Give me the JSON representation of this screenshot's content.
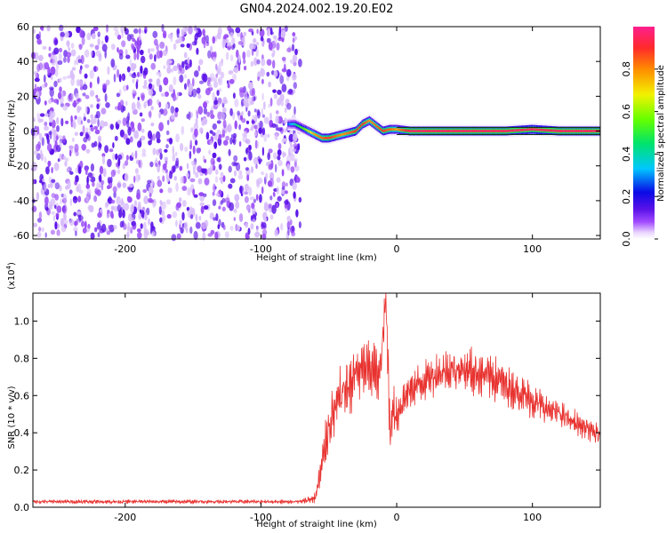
{
  "figure_title": "GN04.2024.002.19.20.E02",
  "colors": {
    "signal_line": "#e8322f",
    "spectrogram_noise": "#7b2cf2",
    "colormap": [
      "#ffffff",
      "#ead6ff",
      "#a24cff",
      "#5a12e8",
      "#0a0ae6",
      "#00c6ff",
      "#00e36b",
      "#62ff00",
      "#f2f200",
      "#ff8c00",
      "#ff2a2a",
      "#ff1f8e"
    ]
  },
  "chart_data": [
    {
      "type": "heatmap",
      "xlabel": "Height of straight line (km)",
      "ylabel": "Frequency (Hz)",
      "xlim": [
        -268,
        150
      ],
      "ylim": [
        -62,
        60
      ],
      "xticks": [
        -200,
        -100,
        0,
        100
      ],
      "xtick_labels": [
        "-200",
        "-100",
        "0",
        "100"
      ],
      "yticks": [
        60,
        40,
        20,
        0,
        -20,
        -40,
        -60
      ],
      "ytick_labels": [
        "60",
        "40",
        "20",
        "0",
        "-20",
        "-40",
        "-60"
      ],
      "noise_region_x": [
        -268,
        -75
      ],
      "signal_band": {
        "x": [
          -80,
          -75,
          -70,
          -65,
          -60,
          -55,
          -50,
          -45,
          -40,
          -35,
          -30,
          -25,
          -20,
          -15,
          -10,
          -5,
          0,
          10,
          20,
          40,
          60,
          80,
          100,
          120,
          150
        ],
        "frequency": [
          4,
          4,
          2,
          0,
          -2,
          -4,
          -4,
          -3,
          -2,
          -1,
          0,
          4,
          6,
          3,
          0,
          1,
          1,
          0,
          0,
          0,
          0,
          0,
          1,
          0,
          0
        ],
        "amplitude": [
          0.4,
          0.5,
          0.6,
          0.7,
          0.8,
          0.85,
          0.9,
          0.85,
          0.8,
          0.85,
          0.9,
          0.9,
          0.8,
          0.85,
          0.9,
          0.85,
          0.8,
          0.95,
          0.95,
          0.95,
          0.95,
          0.95,
          0.95,
          0.95,
          0.95
        ]
      },
      "colorbar": {
        "label": "Normalized spectral amplitude",
        "range": [
          0,
          1
        ],
        "ticks": [
          0.0,
          0.2,
          0.4,
          0.6,
          0.8
        ],
        "tick_labels": [
          "0.0",
          "0.2",
          "0.4",
          "0.6",
          "0.8"
        ]
      }
    },
    {
      "type": "line",
      "xlabel": "Height of straight line (km)",
      "ylabel": "SNR (10 * v/v)",
      "multiplier_label": "(x10",
      "multiplier_exponent": "4",
      "multiplier_close": ")",
      "xlim": [
        -268,
        150
      ],
      "ylim": [
        0,
        1.15
      ],
      "xticks": [
        -200,
        -100,
        0,
        100
      ],
      "xtick_labels": [
        "-200",
        "-100",
        "0",
        "100"
      ],
      "yticks": [
        0.0,
        0.2,
        0.4,
        0.6,
        0.8,
        1.0
      ],
      "ytick_labels": [
        "0.0",
        "0.2",
        "0.4",
        "0.6",
        "0.8",
        "1.0"
      ],
      "series": [
        {
          "x": [
            -268,
            -240,
            -200,
            -150,
            -100,
            -70,
            -60,
            -55,
            -50,
            -45,
            -40,
            -35,
            -30,
            -25,
            -20,
            -15,
            -12,
            -8,
            -5,
            -2,
            0,
            5,
            10,
            20,
            30,
            40,
            50,
            60,
            70,
            80,
            90,
            100,
            110,
            120,
            130,
            140,
            150
          ],
          "y": [
            0.03,
            0.03,
            0.03,
            0.03,
            0.03,
            0.03,
            0.05,
            0.22,
            0.45,
            0.52,
            0.62,
            0.66,
            0.72,
            0.74,
            0.74,
            0.72,
            0.72,
            1.12,
            0.45,
            0.52,
            0.5,
            0.58,
            0.63,
            0.68,
            0.72,
            0.74,
            0.74,
            0.72,
            0.7,
            0.66,
            0.62,
            0.57,
            0.53,
            0.5,
            0.46,
            0.42,
            0.38
          ],
          "spread": [
            0.01,
            0.01,
            0.01,
            0.01,
            0.01,
            0.01,
            0.03,
            0.1,
            0.14,
            0.14,
            0.16,
            0.16,
            0.16,
            0.16,
            0.16,
            0.14,
            0.14,
            0.1,
            0.2,
            0.16,
            0.12,
            0.1,
            0.1,
            0.1,
            0.11,
            0.12,
            0.13,
            0.12,
            0.12,
            0.11,
            0.1,
            0.09,
            0.08,
            0.07,
            0.07,
            0.06,
            0.06
          ]
        }
      ]
    }
  ]
}
